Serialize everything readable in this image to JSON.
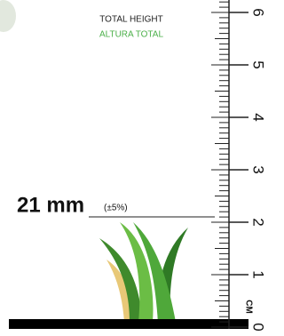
{
  "header": {
    "title": "TOTAL HEIGHT",
    "subtitle": "ALTURA TOTAL"
  },
  "height": {
    "label": "21 mm",
    "tolerance": "(±5%)"
  },
  "ruler": {
    "unit": "CM",
    "labels": [
      0,
      1,
      2,
      3,
      4,
      5,
      6
    ]
  }
}
